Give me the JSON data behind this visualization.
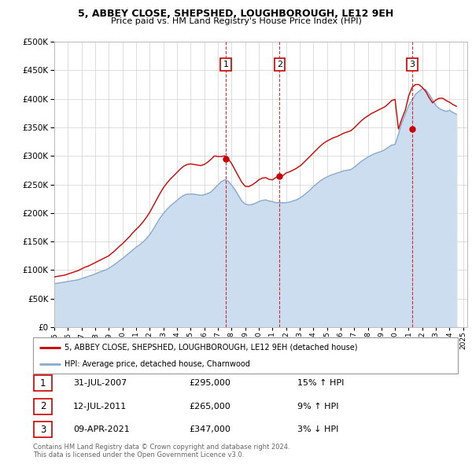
{
  "title": "5, ABBEY CLOSE, SHEPSHED, LOUGHBOROUGH, LE12 9EH",
  "subtitle": "Price paid vs. HM Land Registry's House Price Index (HPI)",
  "ylim": [
    0,
    500000
  ],
  "yticks": [
    0,
    50000,
    100000,
    150000,
    200000,
    250000,
    300000,
    350000,
    400000,
    450000,
    500000
  ],
  "xlim_start": 1995.0,
  "xlim_end": 2025.3,
  "grid_color": "#d8d8d8",
  "red_line_color": "#cc0000",
  "blue_line_color": "#88aacc",
  "blue_fill_color": "#ccddf0",
  "vline_color": "#cc0000",
  "legend_label_red": "5, ABBEY CLOSE, SHEPSHED, LOUGHBOROUGH, LE12 9EH (detached house)",
  "legend_label_blue": "HPI: Average price, detached house, Charnwood",
  "sales": [
    {
      "num": 1,
      "date": "31-JUL-2007",
      "price": 295000,
      "year": 2007.58,
      "hpi_pct": "15%",
      "direction": "↑"
    },
    {
      "num": 2,
      "date": "12-JUL-2011",
      "price": 265000,
      "year": 2011.53,
      "hpi_pct": "9%",
      "direction": "↑"
    },
    {
      "num": 3,
      "date": "09-APR-2021",
      "price": 347000,
      "year": 2021.27,
      "hpi_pct": "3%",
      "direction": "↓"
    }
  ],
  "footer": "Contains HM Land Registry data © Crown copyright and database right 2024.\nThis data is licensed under the Open Government Licence v3.0.",
  "hpi_years": [
    1995.0,
    1995.25,
    1995.5,
    1995.75,
    1996.0,
    1996.25,
    1996.5,
    1996.75,
    1997.0,
    1997.25,
    1997.5,
    1997.75,
    1998.0,
    1998.25,
    1998.5,
    1998.75,
    1999.0,
    1999.25,
    1999.5,
    1999.75,
    2000.0,
    2000.25,
    2000.5,
    2000.75,
    2001.0,
    2001.25,
    2001.5,
    2001.75,
    2002.0,
    2002.25,
    2002.5,
    2002.75,
    2003.0,
    2003.25,
    2003.5,
    2003.75,
    2004.0,
    2004.25,
    2004.5,
    2004.75,
    2005.0,
    2005.25,
    2005.5,
    2005.75,
    2006.0,
    2006.25,
    2006.5,
    2006.75,
    2007.0,
    2007.25,
    2007.5,
    2007.75,
    2008.0,
    2008.25,
    2008.5,
    2008.75,
    2009.0,
    2009.25,
    2009.5,
    2009.75,
    2010.0,
    2010.25,
    2010.5,
    2010.75,
    2011.0,
    2011.25,
    2011.5,
    2011.75,
    2012.0,
    2012.25,
    2012.5,
    2012.75,
    2013.0,
    2013.25,
    2013.5,
    2013.75,
    2014.0,
    2014.25,
    2014.5,
    2014.75,
    2015.0,
    2015.25,
    2015.5,
    2015.75,
    2016.0,
    2016.25,
    2016.5,
    2016.75,
    2017.0,
    2017.25,
    2017.5,
    2017.75,
    2018.0,
    2018.25,
    2018.5,
    2018.75,
    2019.0,
    2019.25,
    2019.5,
    2019.75,
    2020.0,
    2020.25,
    2020.5,
    2020.75,
    2021.0,
    2021.25,
    2021.5,
    2021.75,
    2022.0,
    2022.25,
    2022.5,
    2022.75,
    2023.0,
    2023.25,
    2023.5,
    2023.75,
    2024.0,
    2024.25,
    2024.5
  ],
  "hpi_values": [
    76000,
    77000,
    78000,
    79000,
    80000,
    81000,
    82000,
    83000,
    85000,
    87000,
    89000,
    91000,
    93000,
    96000,
    98000,
    100000,
    103000,
    107000,
    111000,
    116000,
    120000,
    125000,
    130000,
    135000,
    140000,
    144000,
    149000,
    155000,
    162000,
    171000,
    181000,
    191000,
    199000,
    206000,
    212000,
    217000,
    222000,
    227000,
    231000,
    233000,
    233000,
    233000,
    232000,
    231000,
    232000,
    234000,
    237000,
    243000,
    249000,
    255000,
    258000,
    256000,
    249000,
    241000,
    231000,
    221000,
    216000,
    214000,
    215000,
    217000,
    220000,
    222000,
    223000,
    221000,
    220000,
    218000,
    218000,
    218000,
    218000,
    219000,
    221000,
    223000,
    226000,
    230000,
    235000,
    240000,
    246000,
    251000,
    256000,
    260000,
    263000,
    266000,
    268000,
    270000,
    272000,
    274000,
    275000,
    276000,
    280000,
    285000,
    290000,
    294000,
    298000,
    301000,
    304000,
    306000,
    308000,
    311000,
    315000,
    319000,
    320000,
    338000,
    358000,
    373000,
    388000,
    398000,
    408000,
    413000,
    418000,
    416000,
    408000,
    398000,
    388000,
    383000,
    380000,
    378000,
    380000,
    376000,
    373000
  ],
  "red_years": [
    1995.0,
    1995.25,
    1995.5,
    1995.75,
    1996.0,
    1996.25,
    1996.5,
    1996.75,
    1997.0,
    1997.25,
    1997.5,
    1997.75,
    1998.0,
    1998.25,
    1998.5,
    1998.75,
    1999.0,
    1999.25,
    1999.5,
    1999.75,
    2000.0,
    2000.25,
    2000.5,
    2000.75,
    2001.0,
    2001.25,
    2001.5,
    2001.75,
    2002.0,
    2002.25,
    2002.5,
    2002.75,
    2003.0,
    2003.25,
    2003.5,
    2003.75,
    2004.0,
    2004.25,
    2004.5,
    2004.75,
    2005.0,
    2005.25,
    2005.5,
    2005.75,
    2006.0,
    2006.25,
    2006.5,
    2006.75,
    2007.0,
    2007.25,
    2007.5,
    2007.75,
    2008.0,
    2008.25,
    2008.5,
    2008.75,
    2009.0,
    2009.25,
    2009.5,
    2009.75,
    2010.0,
    2010.25,
    2010.5,
    2010.75,
    2011.0,
    2011.25,
    2011.5,
    2011.75,
    2012.0,
    2012.25,
    2012.5,
    2012.75,
    2013.0,
    2013.25,
    2013.5,
    2013.75,
    2014.0,
    2014.25,
    2014.5,
    2014.75,
    2015.0,
    2015.25,
    2015.5,
    2015.75,
    2016.0,
    2016.25,
    2016.5,
    2016.75,
    2017.0,
    2017.25,
    2017.5,
    2017.75,
    2018.0,
    2018.25,
    2018.5,
    2018.75,
    2019.0,
    2019.25,
    2019.5,
    2019.75,
    2020.0,
    2020.25,
    2020.5,
    2020.75,
    2021.0,
    2021.25,
    2021.5,
    2021.75,
    2022.0,
    2022.25,
    2022.5,
    2022.75,
    2023.0,
    2023.25,
    2023.5,
    2023.75,
    2024.0,
    2024.25,
    2024.5
  ],
  "red_values": [
    88000,
    89000,
    90000,
    91000,
    93000,
    95000,
    97000,
    99000,
    102000,
    105000,
    107000,
    110000,
    113000,
    116000,
    119000,
    122000,
    125000,
    130000,
    135000,
    141000,
    146000,
    152000,
    158000,
    165000,
    171000,
    177000,
    184000,
    192000,
    201000,
    212000,
    223000,
    234000,
    244000,
    252000,
    259000,
    265000,
    271000,
    277000,
    282000,
    285000,
    286000,
    285000,
    284000,
    283000,
    285000,
    289000,
    294000,
    300000,
    299000,
    299000,
    300000,
    295000,
    287000,
    276000,
    265000,
    254000,
    247000,
    246000,
    249000,
    253000,
    258000,
    261000,
    262000,
    259000,
    258000,
    262000,
    265000,
    265000,
    270000,
    272000,
    275000,
    278000,
    282000,
    287000,
    293000,
    299000,
    305000,
    311000,
    317000,
    322000,
    326000,
    329000,
    332000,
    334000,
    337000,
    340000,
    342000,
    344000,
    349000,
    355000,
    361000,
    366000,
    370000,
    374000,
    377000,
    380000,
    383000,
    386000,
    391000,
    397000,
    399000,
    347000,
    365000,
    380000,
    405000,
    420000,
    425000,
    425000,
    420000,
    413000,
    402000,
    393000,
    398000,
    401000,
    401000,
    397000,
    394000,
    390000,
    387000
  ]
}
